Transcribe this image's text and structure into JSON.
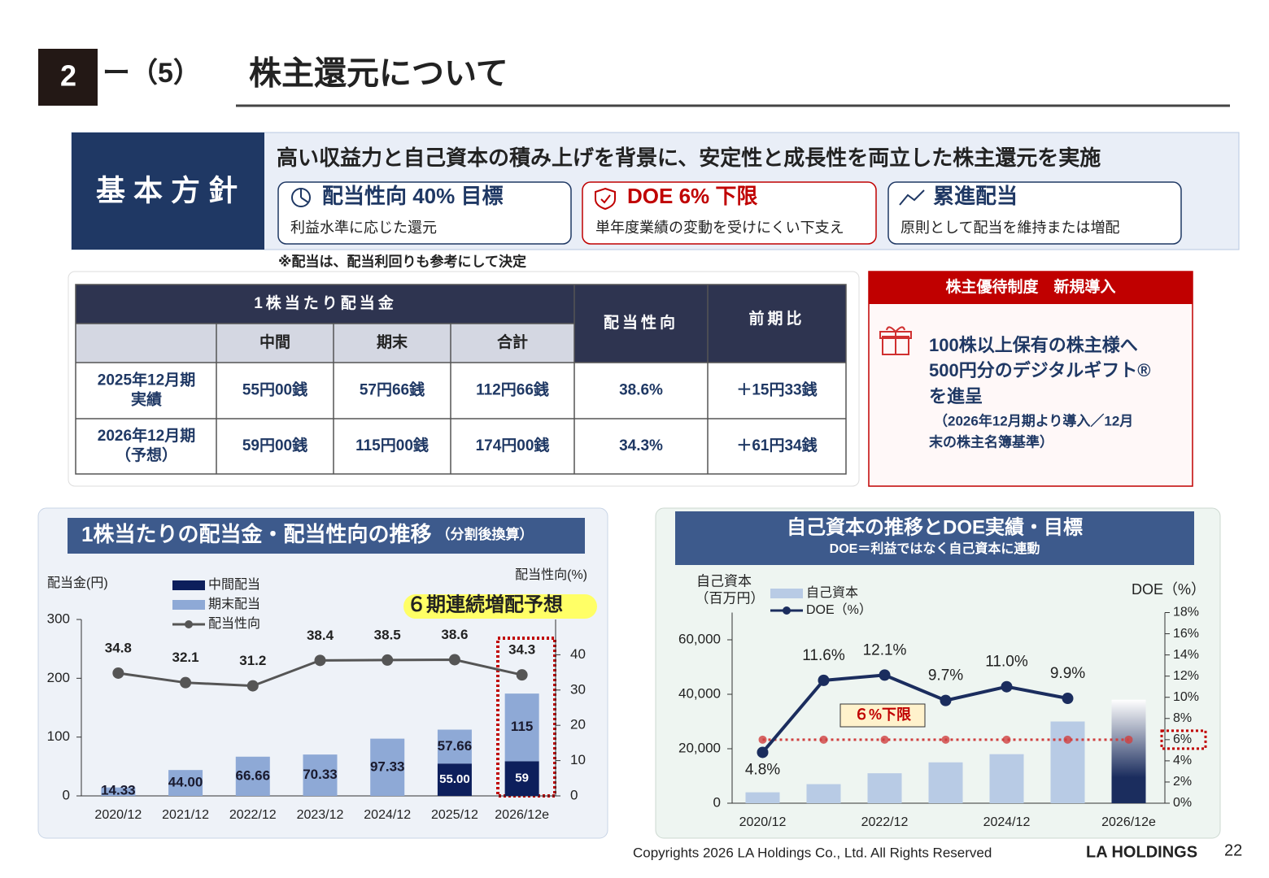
{
  "header": {
    "number": "2",
    "section": "ー（5）",
    "title": "株主還元について"
  },
  "policy": {
    "label": "基本方針",
    "headline": "高い収益力と自己資本の積み上げを背景に、安定性と成長性を両立した株主還元を実施",
    "items": [
      {
        "title": "配当性向 40% 目標",
        "desc": "利益水準に応じた還元"
      },
      {
        "title": "DOE 6% 下限",
        "desc": "単年度業績の変動を受けにくい下支え"
      },
      {
        "title": "累進配当",
        "desc": "原則として配当を維持または増配"
      }
    ],
    "note": "※配当は、配当利回りも参考にして決定"
  },
  "table": {
    "group_header": "1株当たり配当金",
    "headers": [
      "中間",
      "期末",
      "合計"
    ],
    "payout_header": "配当性向",
    "change_header": "前期比",
    "rows": [
      {
        "label": [
          "2025年12月期",
          "実績"
        ],
        "cells": [
          "55円00銭",
          "57円66銭",
          "112円66銭",
          "38.6%",
          "＋15円33銭"
        ]
      },
      {
        "label": [
          "2026年12月期",
          "（予想）"
        ],
        "cells": [
          "59円00銭",
          "115円00銭",
          "174円00銭",
          "34.3%",
          "＋61円34銭"
        ]
      }
    ]
  },
  "benefit": {
    "title": "株主優待制度　新規導入",
    "lines": [
      "100株以上保有の株主様へ",
      "500円分のデジタルギフト®",
      "を進呈"
    ],
    "note_lines": [
      "（2026年12月期より導入／12月",
      "末の株主名簿基準）"
    ]
  },
  "chart_data": [
    {
      "type": "bar",
      "title": "1株当たりの配当金・配当性向の推移",
      "subtitle": "（分割後換算）",
      "y_label": "配当金(円)",
      "y2_label": "配当性向(%)",
      "annotation": "６期連続増配予想",
      "categories": [
        "2020/12",
        "2021/12",
        "2022/12",
        "2023/12",
        "2024/12",
        "2025/12",
        "2026/12e"
      ],
      "stacked": true,
      "series": [
        {
          "name": "中間配当",
          "color": "#0d1f5c",
          "values": [
            null,
            null,
            null,
            null,
            null,
            55.0,
            59
          ],
          "value_labels": [
            null,
            null,
            null,
            null,
            null,
            "55.00",
            "59"
          ]
        },
        {
          "name": "期末配当",
          "color": "#8ea9d6",
          "values": [
            14.33,
            44.0,
            66.66,
            70.33,
            97.33,
            57.66,
            115
          ],
          "value_labels": [
            "14.33",
            "44.00",
            "66.66",
            "70.33",
            "97.33",
            "57.66",
            "115"
          ]
        },
        {
          "name": "配当性向",
          "type": "line",
          "axis": "y2",
          "color": "#555555",
          "values": [
            34.8,
            32.1,
            31.2,
            38.4,
            38.5,
            38.6,
            34.3
          ]
        }
      ],
      "ylim": [
        0,
        300
      ],
      "yticks": [
        0,
        100,
        200,
        300
      ],
      "y2lim": [
        0,
        50
      ],
      "y2ticks": [
        0,
        10,
        20,
        30,
        40
      ]
    },
    {
      "type": "bar",
      "title": "自己資本の推移とDOE実績・目標",
      "subtitle": "DOE＝利益ではなく自己資本に連動",
      "y_label": [
        "自己資本",
        "（百万円）"
      ],
      "y2_label": "DOE（%）",
      "categories": [
        "2020/12",
        null,
        "2022/12",
        null,
        "2024/12",
        null,
        "2026/12e"
      ],
      "forecast_color": "#1b2d5e",
      "series": [
        {
          "name": "自己資本",
          "color": "#b8cbe5",
          "values": [
            4000,
            7000,
            11000,
            15000,
            18000,
            30000,
            38000
          ]
        },
        {
          "name": "DOE（%）",
          "type": "line",
          "axis": "y2",
          "color": "#1b2d5e",
          "values": [
            4.8,
            11.6,
            12.1,
            9.7,
            11.0,
            9.9,
            null
          ],
          "value_labels": [
            "4.8%",
            "11.6%",
            "12.1%",
            "9.7%",
            "11.0%",
            "9.9%",
            null
          ]
        }
      ],
      "target_line": {
        "value": 6,
        "label": "６%下限",
        "color": "#d04040"
      },
      "ylim": [
        0,
        70000
      ],
      "yticks": [
        0,
        {
          "value": 20000,
          "label": "20,000"
        },
        {
          "value": 40000,
          "label": "40,000"
        },
        {
          "value": 60000,
          "label": "60,000"
        }
      ],
      "y2lim": [
        0,
        18
      ],
      "y2ticks": [
        {
          "value": 0,
          "label": "0%"
        },
        {
          "value": 2,
          "label": "2%"
        },
        {
          "value": 4,
          "label": "4%"
        },
        {
          "value": 6,
          "label": "6%"
        },
        {
          "value": 8,
          "label": "8%"
        },
        {
          "value": 10,
          "label": "10%"
        },
        {
          "value": 12,
          "label": "12%"
        },
        {
          "value": 14,
          "label": "14%"
        },
        {
          "value": 16,
          "label": "16%"
        },
        {
          "value": 18,
          "label": "18%"
        }
      ]
    }
  ],
  "footer": {
    "copyright": "Copyrights 2026 LA Holdings Co., Ltd.  All Rights Reserved",
    "logo": "LA HOLDINGS",
    "page": "22"
  }
}
